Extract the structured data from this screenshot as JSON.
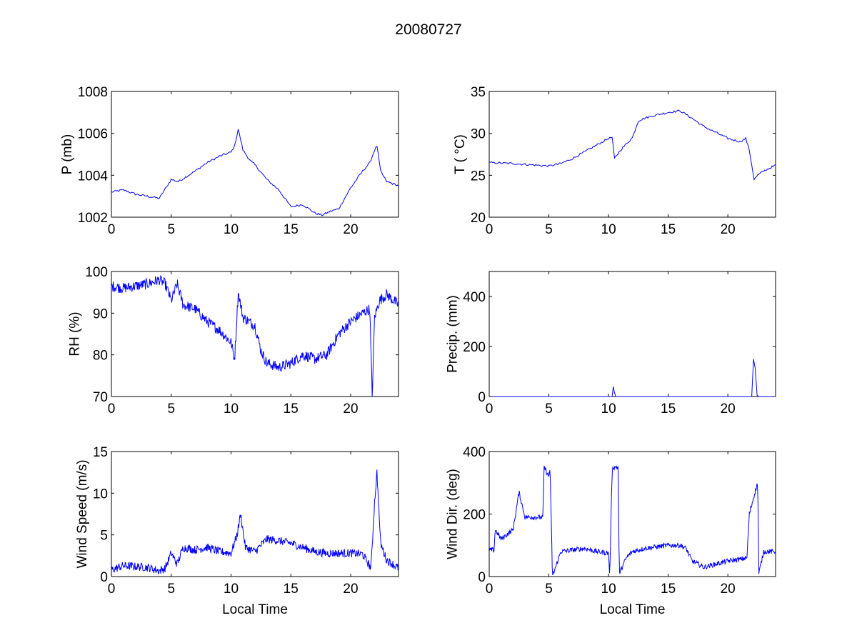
{
  "figure": {
    "title": "20080727",
    "line_color": "#0000ff"
  },
  "chart_data": [
    {
      "type": "line",
      "id": "pressure",
      "xlabel": "",
      "ylabel": "P (mb)",
      "xlim": [
        0,
        24
      ],
      "ylim": [
        1002,
        1008
      ],
      "xticks": [
        0,
        5,
        10,
        15,
        20
      ],
      "yticks": [
        1002,
        1004,
        1006,
        1008
      ],
      "noise": 0.05,
      "step": 0.1,
      "x": [
        0,
        1,
        2,
        3,
        4,
        5,
        5.6,
        7,
        8,
        9,
        10,
        10.3,
        10.6,
        11,
        11.6,
        12,
        13,
        14,
        15,
        16,
        17,
        17.6,
        18.4,
        19,
        20,
        21,
        21.6,
        22,
        22.2,
        22.5,
        23,
        24
      ],
      "y": [
        1003.2,
        1003.3,
        1003.1,
        1003.0,
        1002.9,
        1003.8,
        1003.7,
        1004.2,
        1004.6,
        1004.9,
        1005.1,
        1005.4,
        1006.2,
        1005.2,
        1004.7,
        1004.5,
        1003.8,
        1003.3,
        1002.5,
        1002.6,
        1002.2,
        1002.1,
        1002.3,
        1002.4,
        1003.4,
        1004.2,
        1004.6,
        1005.2,
        1005.4,
        1004.2,
        1003.7,
        1003.5
      ]
    },
    {
      "type": "line",
      "id": "temperature",
      "xlabel": "",
      "ylabel": "T ( °C)",
      "xlim": [
        0,
        24
      ],
      "ylim": [
        20,
        35
      ],
      "xticks": [
        0,
        5,
        10,
        15,
        20
      ],
      "yticks": [
        20,
        25,
        30,
        35
      ],
      "noise": 0.12,
      "step": 0.1,
      "x": [
        0,
        2,
        4,
        5,
        6,
        7,
        8,
        9,
        10,
        10.3,
        10.5,
        11,
        12,
        12.5,
        13,
        14,
        15,
        16,
        17,
        18,
        19,
        20,
        21,
        21.5,
        21.8,
        22.2,
        22.5,
        23,
        24
      ],
      "y": [
        26.5,
        26.4,
        26.2,
        26.1,
        26.4,
        27.0,
        27.8,
        28.6,
        29.4,
        29.5,
        27.0,
        28.0,
        29.5,
        31.5,
        31.8,
        32.2,
        32.5,
        32.7,
        31.8,
        30.8,
        30.1,
        29.4,
        29.0,
        29.4,
        28.0,
        24.5,
        25.0,
        25.5,
        26.2
      ]
    },
    {
      "type": "line",
      "id": "humidity",
      "xlabel": "",
      "ylabel": "RH (%)",
      "xlim": [
        0,
        24
      ],
      "ylim": [
        70,
        100
      ],
      "xticks": [
        0,
        5,
        10,
        15,
        20
      ],
      "yticks": [
        70,
        80,
        90,
        100
      ],
      "noise": 1.3,
      "step": 0.04,
      "x": [
        0,
        1,
        2,
        3,
        4,
        4.5,
        5,
        5.5,
        6,
        7,
        8,
        9,
        10,
        10.3,
        10.6,
        11,
        12,
        12.5,
        13,
        14,
        15,
        16,
        17,
        18,
        19,
        20,
        21,
        21.6,
        21.8,
        22,
        22.4,
        23,
        24
      ],
      "y": [
        96.5,
        96,
        96.5,
        97,
        98,
        97,
        93,
        97,
        92,
        91,
        88,
        86,
        83,
        79,
        95,
        89,
        87,
        81,
        78,
        77,
        78,
        80,
        79,
        80,
        85,
        88,
        90,
        91,
        70,
        89,
        93,
        94.5,
        92
      ]
    },
    {
      "type": "line",
      "id": "precipitation",
      "xlabel": "",
      "ylabel": "Precip. (mm)",
      "xlim": [
        0,
        24
      ],
      "ylim": [
        0,
        500
      ],
      "xticks": [
        0,
        5,
        10,
        15,
        20
      ],
      "yticks": [
        0,
        200,
        400
      ],
      "noise": 0,
      "step": 0.05,
      "x": [
        0,
        10.3,
        10.4,
        10.5,
        10.6,
        22,
        22.15,
        22.3,
        22.45,
        22.6,
        24
      ],
      "y": [
        0,
        0,
        40,
        15,
        0,
        0,
        150,
        110,
        5,
        0,
        0
      ]
    },
    {
      "type": "line",
      "id": "wind-speed",
      "xlabel": "Local Time",
      "ylabel": "Wind Speed (m/s)",
      "xlim": [
        0,
        24
      ],
      "ylim": [
        0,
        15
      ],
      "xticks": [
        0,
        5,
        10,
        15,
        20
      ],
      "yticks": [
        0,
        5,
        10,
        15
      ],
      "noise": 0.5,
      "step": 0.04,
      "x": [
        0,
        1,
        2,
        3,
        4,
        4.5,
        5,
        5.5,
        6,
        7,
        8,
        9,
        10,
        10.5,
        10.8,
        11.2,
        12,
        13,
        14,
        15,
        16,
        17,
        18,
        19,
        20,
        21,
        21.7,
        22,
        22.2,
        22.5,
        23,
        24
      ],
      "y": [
        0.8,
        1.3,
        1.2,
        1.1,
        0.7,
        1.0,
        2.8,
        1.5,
        3.5,
        3.2,
        3.5,
        3.0,
        2.8,
        5.0,
        7.5,
        3.5,
        3.0,
        4.5,
        4.3,
        4.0,
        3.5,
        3.0,
        2.8,
        2.8,
        2.8,
        2.7,
        1.0,
        9.0,
        12.5,
        4.0,
        2.0,
        1.0
      ]
    },
    {
      "type": "line",
      "id": "wind-direction",
      "xlabel": "Local Time",
      "ylabel": "Wind Dir. (deg)",
      "xlim": [
        0,
        24
      ],
      "ylim": [
        0,
        400
      ],
      "xticks": [
        0,
        5,
        10,
        15,
        20
      ],
      "yticks": [
        0,
        200,
        400
      ],
      "noise": 8,
      "step": 0.04,
      "x": [
        0,
        0.4,
        0.5,
        1,
        2,
        2.5,
        3,
        4,
        4.5,
        4.6,
        5,
        5.1,
        5.3,
        6,
        7,
        8,
        9,
        10,
        10.1,
        10.3,
        10.4,
        10.8,
        10.9,
        11.5,
        12,
        13,
        14,
        15,
        16,
        16.5,
        17,
        18,
        19,
        20,
        21,
        21.6,
        21.8,
        22.2,
        22.5,
        22.6,
        23,
        24
      ],
      "y": [
        85,
        85,
        150,
        120,
        150,
        270,
        190,
        190,
        190,
        350,
        320,
        350,
        0,
        80,
        85,
        90,
        80,
        75,
        0,
        340,
        350,
        350,
        10,
        60,
        80,
        90,
        95,
        100,
        100,
        90,
        50,
        30,
        40,
        50,
        55,
        60,
        200,
        260,
        300,
        10,
        80,
        80
      ]
    }
  ]
}
